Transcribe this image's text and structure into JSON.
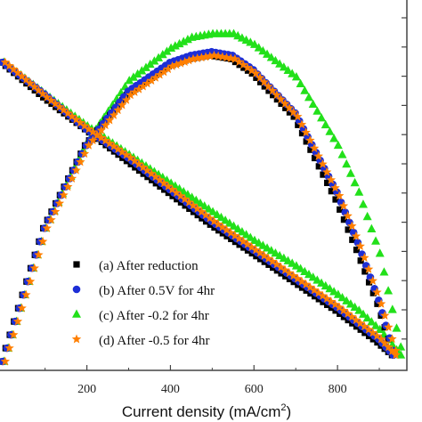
{
  "chart_data": {
    "type": "scatter",
    "xlabel": "Current density (mA/cm",
    "xlabel_sup": "2",
    "xlabel_close": ")",
    "xlim": [
      0,
      960
    ],
    "xticks": [
      200,
      400,
      600,
      800
    ],
    "ylim_voltage": [
      0,
      1
    ],
    "ylim_power": [
      0,
      1
    ],
    "legend_placement": "bottom-left",
    "series": [
      {
        "name": "(a) After reduction",
        "color": "#000000",
        "marker": "square",
        "polarization": [
          [
            0,
            0.94
          ],
          [
            100,
            0.83
          ],
          [
            200,
            0.73
          ],
          [
            300,
            0.63
          ],
          [
            400,
            0.53
          ],
          [
            500,
            0.43
          ],
          [
            600,
            0.34
          ],
          [
            700,
            0.25
          ],
          [
            800,
            0.16
          ],
          [
            850,
            0.11
          ],
          [
            900,
            0.06
          ],
          [
            935,
            0.02
          ]
        ],
        "power": [
          [
            0,
            0.0
          ],
          [
            100,
            0.37
          ],
          [
            200,
            0.6
          ],
          [
            300,
            0.74
          ],
          [
            400,
            0.82
          ],
          [
            450,
            0.84
          ],
          [
            500,
            0.85
          ],
          [
            550,
            0.84
          ],
          [
            600,
            0.8
          ],
          [
            700,
            0.68
          ],
          [
            800,
            0.45
          ],
          [
            850,
            0.31
          ],
          [
            900,
            0.16
          ],
          [
            935,
            0.03
          ]
        ]
      },
      {
        "name": "(b) After 0.5V for 4hr",
        "color": "#1d2ed6",
        "marker": "circle",
        "polarization": [
          [
            0,
            0.94
          ],
          [
            100,
            0.84
          ],
          [
            200,
            0.73
          ],
          [
            300,
            0.64
          ],
          [
            400,
            0.54
          ],
          [
            500,
            0.44
          ],
          [
            600,
            0.35
          ],
          [
            700,
            0.26
          ],
          [
            800,
            0.17
          ],
          [
            850,
            0.12
          ],
          [
            900,
            0.07
          ],
          [
            935,
            0.02
          ]
        ],
        "power": [
          [
            0,
            0.0
          ],
          [
            100,
            0.37
          ],
          [
            200,
            0.6
          ],
          [
            300,
            0.75
          ],
          [
            400,
            0.83
          ],
          [
            450,
            0.85
          ],
          [
            500,
            0.86
          ],
          [
            550,
            0.85
          ],
          [
            600,
            0.81
          ],
          [
            700,
            0.69
          ],
          [
            800,
            0.47
          ],
          [
            850,
            0.33
          ],
          [
            900,
            0.17
          ],
          [
            935,
            0.03
          ]
        ]
      },
      {
        "name": "(c) After  -0.2 for 4hr",
        "color": "#22e01a",
        "marker": "triangle",
        "polarization": [
          [
            0,
            0.94
          ],
          [
            100,
            0.84
          ],
          [
            200,
            0.74
          ],
          [
            300,
            0.65
          ],
          [
            400,
            0.56
          ],
          [
            500,
            0.47
          ],
          [
            600,
            0.38
          ],
          [
            700,
            0.3
          ],
          [
            800,
            0.21
          ],
          [
            850,
            0.16
          ],
          [
            900,
            0.1
          ],
          [
            950,
            0.02
          ]
        ],
        "power": [
          [
            0,
            0.0
          ],
          [
            100,
            0.37
          ],
          [
            200,
            0.61
          ],
          [
            300,
            0.78
          ],
          [
            400,
            0.87
          ],
          [
            450,
            0.9
          ],
          [
            500,
            0.91
          ],
          [
            550,
            0.91
          ],
          [
            600,
            0.88
          ],
          [
            700,
            0.79
          ],
          [
            800,
            0.6
          ],
          [
            850,
            0.47
          ],
          [
            900,
            0.3
          ],
          [
            950,
            0.04
          ]
        ]
      },
      {
        "name": "(d) After  -0.5 for 4hr",
        "color": "#ff7f00",
        "marker": "star",
        "polarization": [
          [
            0,
            0.94
          ],
          [
            100,
            0.83
          ],
          [
            200,
            0.73
          ],
          [
            300,
            0.64
          ],
          [
            400,
            0.54
          ],
          [
            500,
            0.44
          ],
          [
            600,
            0.35
          ],
          [
            700,
            0.26
          ],
          [
            800,
            0.17
          ],
          [
            850,
            0.12
          ],
          [
            900,
            0.07
          ],
          [
            935,
            0.02
          ]
        ],
        "power": [
          [
            0,
            0.0
          ],
          [
            100,
            0.37
          ],
          [
            200,
            0.6
          ],
          [
            300,
            0.74
          ],
          [
            400,
            0.82
          ],
          [
            450,
            0.84
          ],
          [
            500,
            0.85
          ],
          [
            550,
            0.84
          ],
          [
            600,
            0.8
          ],
          [
            700,
            0.68
          ],
          [
            800,
            0.46
          ],
          [
            850,
            0.32
          ],
          [
            900,
            0.16
          ],
          [
            935,
            0.03
          ]
        ]
      }
    ]
  }
}
